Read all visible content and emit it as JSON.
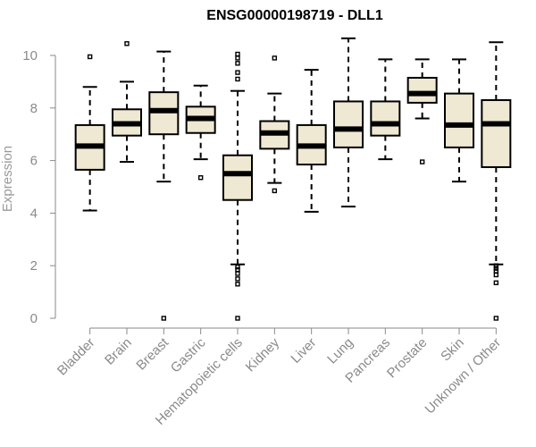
{
  "chart_data": {
    "type": "boxplot",
    "title": "ENSG00000198719 - DLL1",
    "xlabel": "",
    "ylabel": "Expression",
    "ylim": [
      0,
      10.7
    ],
    "yticks": [
      0,
      2,
      4,
      6,
      8,
      10
    ],
    "ytick_labels": [
      "0",
      "2",
      "4",
      "6",
      "8",
      "10"
    ],
    "categories": [
      "Bladder",
      "Brain",
      "Breast",
      "Gastric",
      "Hematopoietic cells",
      "Kidney",
      "Liver",
      "Lung",
      "Pancreas",
      "Prostate",
      "Skin",
      "Unknown / Other"
    ],
    "box_color": "#efe8d2",
    "boxes": [
      {
        "category": "Bladder",
        "whisker_low": 4.1,
        "q1": 5.65,
        "median": 6.55,
        "q3": 7.35,
        "whisker_high": 8.8,
        "outliers": [
          9.95
        ]
      },
      {
        "category": "Brain",
        "whisker_low": 5.95,
        "q1": 6.95,
        "median": 7.4,
        "q3": 7.95,
        "whisker_high": 9.0,
        "outliers": [
          10.45
        ]
      },
      {
        "category": "Breast",
        "whisker_low": 5.2,
        "q1": 7.0,
        "median": 7.9,
        "q3": 8.6,
        "whisker_high": 10.15,
        "outliers": [
          0.0
        ]
      },
      {
        "category": "Gastric",
        "whisker_low": 6.05,
        "q1": 7.05,
        "median": 7.6,
        "q3": 8.05,
        "whisker_high": 8.85,
        "outliers": [
          5.35
        ]
      },
      {
        "category": "Hematopoietic cells",
        "whisker_low": 2.05,
        "q1": 4.5,
        "median": 5.5,
        "q3": 6.2,
        "whisker_high": 8.65,
        "outliers": [
          0.0,
          1.3,
          1.5,
          1.7,
          1.85,
          1.95,
          9.1,
          9.35,
          9.7,
          9.9,
          10.05
        ]
      },
      {
        "category": "Kidney",
        "whisker_low": 5.15,
        "q1": 6.45,
        "median": 7.05,
        "q3": 7.5,
        "whisker_high": 8.55,
        "outliers": [
          4.85,
          9.9
        ]
      },
      {
        "category": "Liver",
        "whisker_low": 4.05,
        "q1": 5.85,
        "median": 6.55,
        "q3": 7.35,
        "whisker_high": 9.45,
        "outliers": []
      },
      {
        "category": "Lung",
        "whisker_low": 4.25,
        "q1": 6.5,
        "median": 7.2,
        "q3": 8.25,
        "whisker_high": 10.65,
        "outliers": []
      },
      {
        "category": "Pancreas",
        "whisker_low": 6.05,
        "q1": 6.95,
        "median": 7.4,
        "q3": 8.25,
        "whisker_high": 9.85,
        "outliers": []
      },
      {
        "category": "Prostate",
        "whisker_low": 7.6,
        "q1": 8.2,
        "median": 8.55,
        "q3": 9.15,
        "whisker_high": 9.85,
        "outliers": [
          5.95
        ]
      },
      {
        "category": "Skin",
        "whisker_low": 5.2,
        "q1": 6.5,
        "median": 7.35,
        "q3": 8.55,
        "whisker_high": 9.85,
        "outliers": []
      },
      {
        "category": "Unknown / Other",
        "whisker_low": 2.05,
        "q1": 5.75,
        "median": 7.4,
        "q3": 8.3,
        "whisker_high": 10.5,
        "outliers": [
          0.0,
          1.35,
          1.65,
          1.8,
          1.9,
          2.0
        ]
      }
    ]
  }
}
